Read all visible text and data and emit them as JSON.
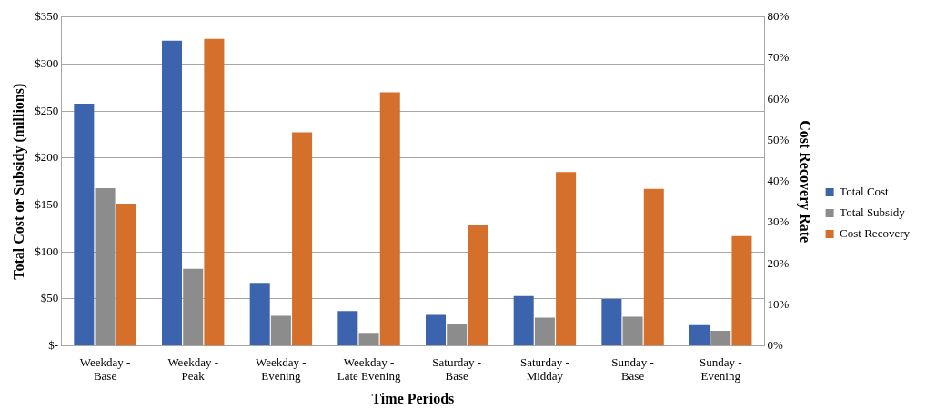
{
  "chart_data": {
    "type": "bar",
    "xlabel": "Time Periods",
    "ylabel": "Total Cost or Subsidy (millions)",
    "y2label": "Cost Recovery Rate",
    "categories": [
      "Weekday - Base",
      "Weekday - Peak",
      "Weekday - Evening",
      "Weekday - Late Evening",
      "Saturday - Base",
      "Saturday - Midday",
      "Sunday - Base",
      "Sunday - Evening"
    ],
    "series": [
      {
        "name": "Total Cost",
        "color": "#3c64ae",
        "values": [
          258,
          325,
          67,
          37,
          33,
          53,
          50,
          22
        ]
      },
      {
        "name": "Total Subsidy",
        "color": "#8c8c8c",
        "values": [
          168,
          82,
          32,
          14,
          23,
          30,
          31,
          16
        ]
      },
      {
        "name": "Cost Recovery",
        "color": "#d4702c",
        "axis": "y2",
        "values": [
          34.6,
          74.7,
          52,
          61.7,
          29.3,
          42.3,
          38.2,
          26.7
        ]
      }
    ],
    "ylim": [
      0,
      350
    ],
    "yticks": [
      {
        "value": 0,
        "label": "$-"
      },
      {
        "value": 50,
        "label": "$50"
      },
      {
        "value": 100,
        "label": "$100"
      },
      {
        "value": 150,
        "label": "$150"
      },
      {
        "value": 200,
        "label": "$200"
      },
      {
        "value": 250,
        "label": "$250"
      },
      {
        "value": 300,
        "label": "$300"
      },
      {
        "value": 350,
        "label": "$350"
      }
    ],
    "y2lim": [
      0,
      80
    ],
    "y2ticks": [
      {
        "value": 0,
        "label": "0%"
      },
      {
        "value": 10,
        "label": "10%"
      },
      {
        "value": 20,
        "label": "20%"
      },
      {
        "value": 30,
        "label": "30%"
      },
      {
        "value": 40,
        "label": "40%"
      },
      {
        "value": 50,
        "label": "50%"
      },
      {
        "value": 60,
        "label": "60%"
      },
      {
        "value": 70,
        "label": "70%"
      },
      {
        "value": 80,
        "label": "80%"
      }
    ],
    "grid": "y",
    "legend": "right"
  }
}
